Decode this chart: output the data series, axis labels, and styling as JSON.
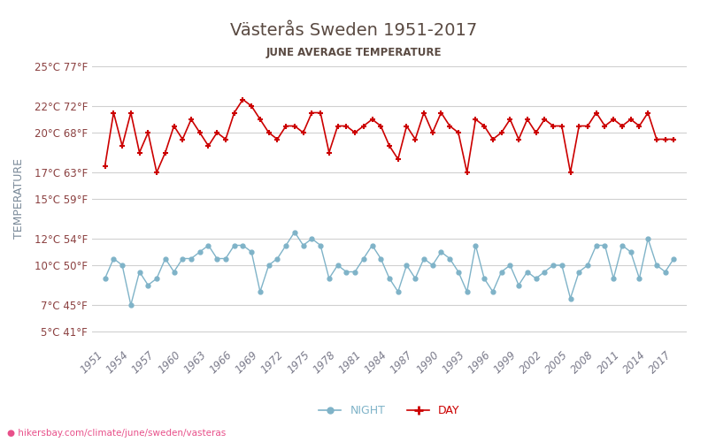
{
  "title": "Västerås Sweden 1951-2017",
  "subtitle": "JUNE AVERAGE TEMPERATURE",
  "ylabel": "TEMPERATURE",
  "footer": "hikersbay.com/climate/june/sweden/vasteras",
  "years": [
    1951,
    1952,
    1953,
    1954,
    1955,
    1956,
    1957,
    1958,
    1959,
    1960,
    1961,
    1962,
    1963,
    1964,
    1965,
    1966,
    1967,
    1968,
    1969,
    1970,
    1971,
    1972,
    1973,
    1974,
    1975,
    1976,
    1977,
    1978,
    1979,
    1980,
    1981,
    1982,
    1983,
    1984,
    1985,
    1986,
    1987,
    1988,
    1989,
    1990,
    1991,
    1992,
    1993,
    1994,
    1995,
    1996,
    1997,
    1998,
    1999,
    2000,
    2001,
    2002,
    2003,
    2004,
    2005,
    2006,
    2007,
    2008,
    2009,
    2010,
    2011,
    2012,
    2013,
    2014,
    2015,
    2016,
    2017
  ],
  "day_temps": [
    17.5,
    21.5,
    19.0,
    21.5,
    18.5,
    20.0,
    17.0,
    18.5,
    20.5,
    19.5,
    21.0,
    20.0,
    19.0,
    20.0,
    19.5,
    21.5,
    22.5,
    22.0,
    21.0,
    20.0,
    19.5,
    20.5,
    20.5,
    20.0,
    21.5,
    21.5,
    18.5,
    20.5,
    20.5,
    20.0,
    20.5,
    21.0,
    20.5,
    19.0,
    18.0,
    20.5,
    19.5,
    21.5,
    20.0,
    21.5,
    20.5,
    20.0,
    17.0,
    21.0,
    20.5,
    19.5,
    20.0,
    21.0,
    19.5,
    21.0,
    20.0,
    21.0,
    20.5,
    20.5,
    17.0,
    20.5,
    20.5,
    21.5,
    20.5,
    21.0,
    20.5,
    21.0,
    20.5,
    21.5,
    19.5,
    19.5,
    19.5
  ],
  "night_temps": [
    9.0,
    10.5,
    10.0,
    7.0,
    9.5,
    8.5,
    9.0,
    10.5,
    9.5,
    10.5,
    10.5,
    11.0,
    11.5,
    10.5,
    10.5,
    11.5,
    11.5,
    11.0,
    8.0,
    10.0,
    10.5,
    11.5,
    12.5,
    11.5,
    12.0,
    11.5,
    9.0,
    10.0,
    9.5,
    9.5,
    10.5,
    11.5,
    10.5,
    9.0,
    8.0,
    10.0,
    9.0,
    10.5,
    10.0,
    11.0,
    10.5,
    9.5,
    8.0,
    11.5,
    9.0,
    8.0,
    9.5,
    10.0,
    8.5,
    9.5,
    9.0,
    9.5,
    10.0,
    10.0,
    7.5,
    9.5,
    10.0,
    11.5,
    11.5,
    9.0,
    11.5,
    11.0,
    9.0,
    12.0,
    10.0,
    9.5,
    10.5
  ],
  "yticks_c": [
    5,
    7,
    10,
    12,
    15,
    17,
    20,
    22,
    25
  ],
  "yticks_f": [
    41,
    45,
    50,
    54,
    59,
    63,
    68,
    72,
    77
  ],
  "bg_color": "#ffffff",
  "grid_color": "#d0d0d0",
  "day_color": "#cc0000",
  "night_color": "#7fb3c8",
  "title_color": "#5a4a42",
  "subtitle_color": "#5a4a42",
  "ylabel_color": "#7a8a99",
  "tick_color": "#8b4040",
  "footer_color": "#e8508a",
  "xtick_color": "#7a7a8a"
}
